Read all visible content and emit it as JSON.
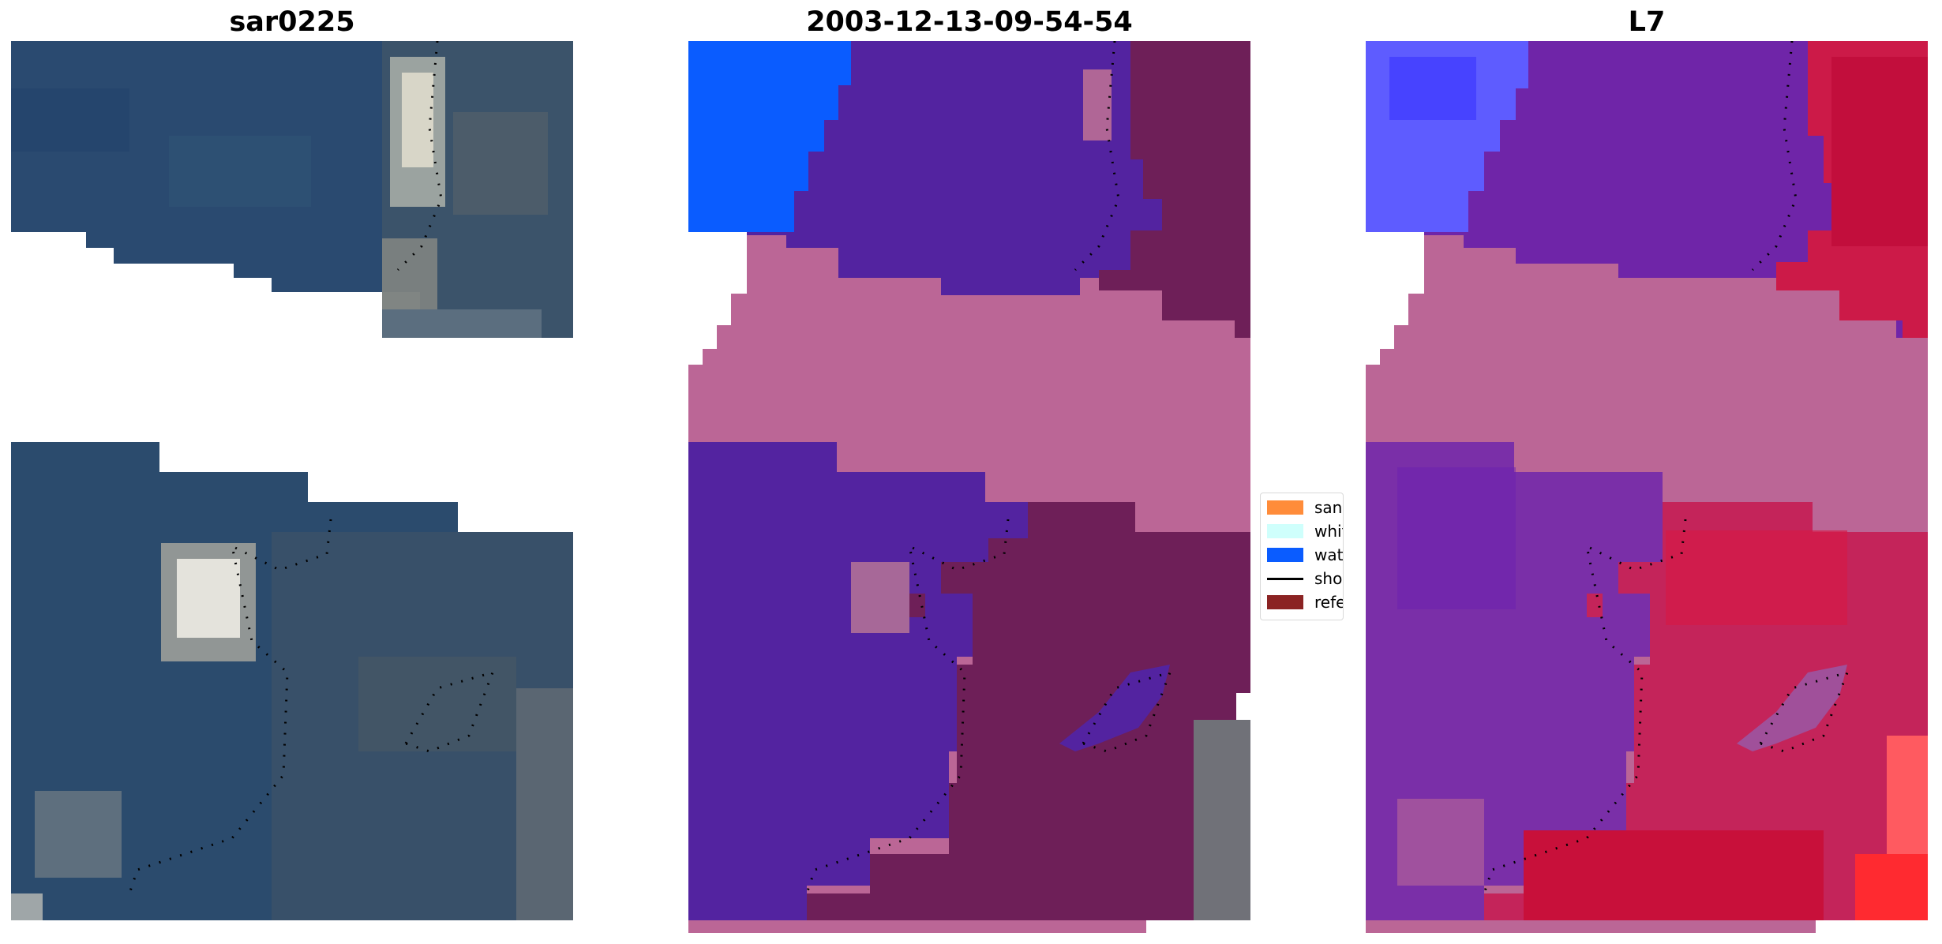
{
  "panels": [
    {
      "title": "sar0225"
    },
    {
      "title": "2003-12-13-09-54-54"
    },
    {
      "title": "L7"
    }
  ],
  "legend": {
    "items": [
      {
        "label": "sand",
        "color": "#ff8c3a",
        "kind": "patch"
      },
      {
        "label": "whitew",
        "color": "#cffffc",
        "kind": "patch"
      },
      {
        "label": "water",
        "color": "#0a5cff",
        "kind": "patch"
      },
      {
        "label": "shorel",
        "color": "#000000",
        "kind": "line"
      },
      {
        "label": "referer",
        "color": "#8b2323",
        "kind": "patch"
      }
    ]
  },
  "colors": {
    "rgb_water": "#284a6e",
    "rgb_land": "#3d5468",
    "class_water_overlay": "#5323a0",
    "class_land_overlay": "#6e1f58",
    "nodata_pink": "#bb6696",
    "water_blue": "#0a5cff",
    "index_water": "#6b22a8",
    "index_land": "#cc1a48"
  }
}
